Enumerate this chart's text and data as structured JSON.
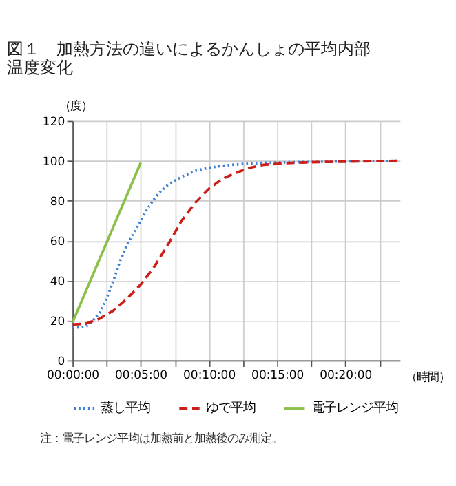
{
  "chart_data": {
    "type": "line",
    "title": [
      "図１　加熱方法の違いによるかんしょの平均内部",
      "温度変化"
    ],
    "ylabel": "（度）",
    "xlabel": "（時間）",
    "xlim": [
      0,
      0.4
    ],
    "ylim": [
      0,
      120
    ],
    "xticks": [
      {
        "value": 0,
        "label": "00:00:00"
      },
      {
        "value": 0.041667,
        "label": null
      },
      {
        "value": 0.083333,
        "label": "00:05:00"
      },
      {
        "value": 0.125,
        "label": null
      },
      {
        "value": 0.166667,
        "label": "00:10:00"
      },
      {
        "value": 0.208333,
        "label": null
      },
      {
        "value": 0.25,
        "label": "00:15:00"
      },
      {
        "value": 0.291667,
        "label": null
      },
      {
        "value": 0.333333,
        "label": "00:20:00"
      },
      {
        "value": 0.375,
        "label": null
      }
    ],
    "yticks": [
      0,
      20,
      40,
      60,
      80,
      100,
      120
    ],
    "grid": true,
    "legend": "bottom",
    "marker": "none",
    "series": [
      {
        "name": "蒸し平均",
        "color": "#3a7fd5",
        "line_style": "dotted",
        "x": [
          0,
          0.008333,
          0.016667,
          0.025,
          0.033333,
          0.041667,
          0.05,
          0.058333,
          0.066667,
          0.075,
          0.083333,
          0.091667,
          0.1,
          0.108333,
          0.116667,
          0.133333,
          0.15,
          0.166667,
          0.183333,
          0.2,
          0.233333,
          0.266667,
          0.3,
          0.333333,
          0.4
        ],
        "values": [
          17,
          16.5,
          17,
          20,
          24,
          31,
          40,
          50,
          58,
          64,
          70,
          76,
          81,
          85,
          88,
          92,
          95,
          96.5,
          97.5,
          98.2,
          99,
          99.3,
          99.5,
          99.7,
          100
        ]
      },
      {
        "name": "ゆで平均",
        "color": "#cc1f1a",
        "line_style": "dashed",
        "x": [
          0,
          0.016667,
          0.033333,
          0.05,
          0.066667,
          0.083333,
          0.1,
          0.116667,
          0.133333,
          0.15,
          0.166667,
          0.183333,
          0.2,
          0.216667,
          0.233333,
          0.266667,
          0.3,
          0.333333,
          0.366667,
          0.4
        ],
        "values": [
          18,
          18.5,
          21,
          25,
          31,
          38,
          47,
          58,
          70,
          79,
          86,
          91,
          94,
          96.5,
          98,
          99,
          99.4,
          99.6,
          99.8,
          100
        ]
      },
      {
        "name": "電子レンジ平均",
        "color": "#8cc04a",
        "line_style": "solid",
        "x": [
          0,
          0.083333
        ],
        "values": [
          19,
          99
        ]
      }
    ],
    "annotations": [
      "注：電子レンジ平均は加熱前と加熱後のみ測定。"
    ]
  }
}
